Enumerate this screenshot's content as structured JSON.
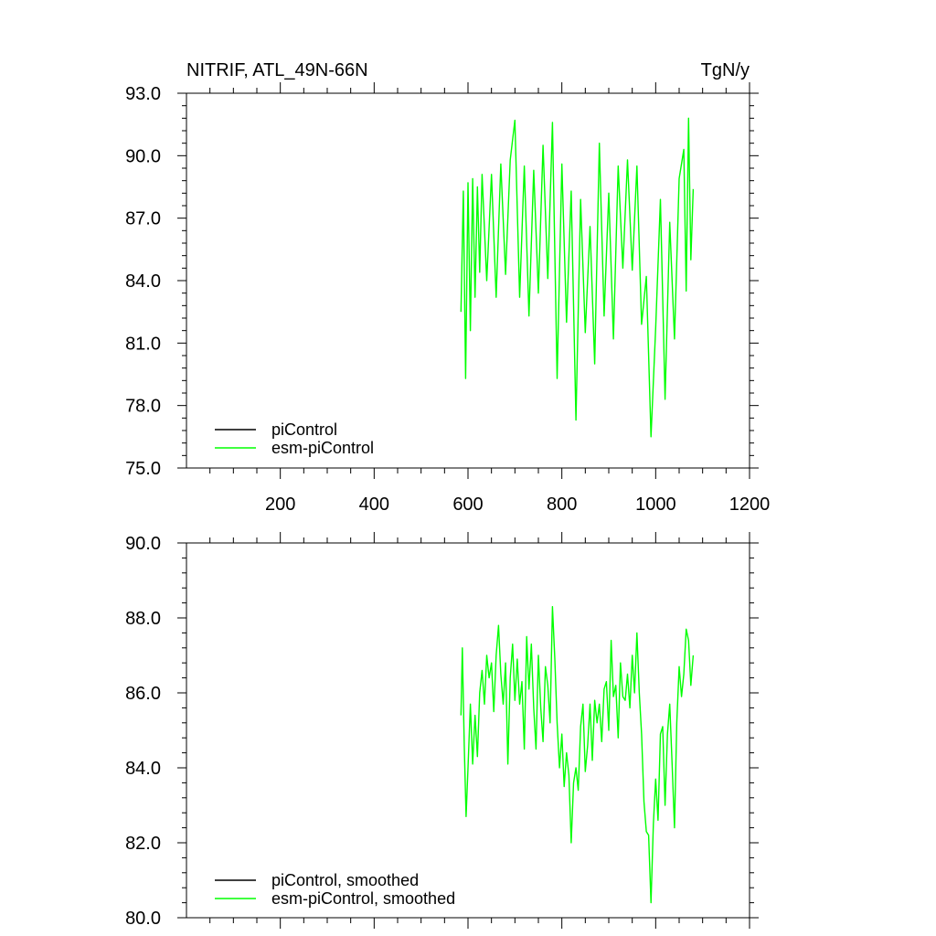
{
  "chart_data": [
    {
      "type": "line",
      "title_left": "NITRIF, ATL_49N-66N",
      "title_right": "TgN/y",
      "xlim": [
        0,
        1200
      ],
      "ylim": [
        75.0,
        93.0
      ],
      "x_ticks": [
        200,
        400,
        600,
        800,
        1000,
        1200
      ],
      "y_ticks": [
        "75.0",
        "78.0",
        "81.0",
        "84.0",
        "87.0",
        "90.0",
        "93.0"
      ],
      "legend": [
        "piControl",
        "esm-piControl"
      ],
      "legend_placement": "bottom-left",
      "series": [
        {
          "name": "piControl",
          "color": "#000000",
          "x": [],
          "y": []
        },
        {
          "name": "esm-piControl",
          "color": "#00ff00",
          "x": [
            585,
            590,
            595,
            600,
            605,
            610,
            615,
            620,
            625,
            630,
            640,
            650,
            660,
            670,
            680,
            690,
            700,
            710,
            720,
            730,
            740,
            750,
            760,
            770,
            780,
            790,
            800,
            810,
            820,
            830,
            840,
            850,
            860,
            870,
            880,
            890,
            900,
            910,
            920,
            930,
            940,
            950,
            960,
            970,
            980,
            990,
            1000,
            1010,
            1020,
            1030,
            1040,
            1050,
            1060,
            1065,
            1070,
            1075,
            1080
          ],
          "y": [
            82.5,
            88.3,
            79.3,
            88.7,
            81.6,
            88.9,
            83.2,
            88.5,
            84.4,
            89.1,
            84.0,
            89.1,
            83.2,
            89.6,
            84.3,
            89.8,
            91.7,
            83.2,
            89.5,
            82.3,
            89.3,
            83.4,
            90.5,
            84.1,
            91.6,
            79.3,
            89.6,
            82.0,
            88.3,
            77.3,
            87.9,
            81.5,
            86.6,
            80.0,
            90.6,
            82.3,
            88.2,
            81.2,
            89.5,
            84.6,
            89.8,
            84.5,
            89.5,
            81.9,
            84.2,
            76.5,
            81.7,
            87.9,
            78.3,
            86.8,
            81.2,
            88.9,
            90.3,
            83.5,
            91.8,
            85.0,
            88.4
          ]
        }
      ]
    },
    {
      "type": "line",
      "xlim": [
        0,
        1200
      ],
      "ylim": [
        80.0,
        90.0
      ],
      "y_ticks": [
        "80.0",
        "82.0",
        "84.0",
        "86.0",
        "88.0",
        "90.0"
      ],
      "legend": [
        "piControl, smoothed",
        "esm-piControl, smoothed"
      ],
      "legend_placement": "bottom-left",
      "series": [
        {
          "name": "piControl, smoothed",
          "color": "#000000",
          "x": [],
          "y": []
        },
        {
          "name": "esm-piControl, smoothed",
          "color": "#00ff00",
          "x": [
            585,
            588,
            592,
            596,
            600,
            605,
            610,
            615,
            620,
            625,
            630,
            635,
            640,
            645,
            650,
            655,
            660,
            665,
            670,
            675,
            680,
            685,
            690,
            695,
            700,
            705,
            710,
            715,
            720,
            725,
            730,
            735,
            740,
            745,
            750,
            755,
            760,
            765,
            770,
            775,
            780,
            785,
            790,
            795,
            800,
            805,
            810,
            815,
            820,
            825,
            830,
            835,
            840,
            845,
            850,
            855,
            860,
            865,
            870,
            875,
            880,
            885,
            890,
            895,
            900,
            905,
            910,
            915,
            920,
            925,
            930,
            935,
            940,
            945,
            950,
            955,
            960,
            965,
            970,
            975,
            980,
            985,
            990,
            995,
            1000,
            1005,
            1010,
            1015,
            1020,
            1025,
            1030,
            1035,
            1040,
            1045,
            1050,
            1055,
            1060,
            1065,
            1070,
            1075,
            1080
          ],
          "y": [
            85.4,
            87.2,
            84.6,
            82.7,
            84.0,
            85.7,
            84.1,
            85.4,
            84.3,
            86.0,
            86.6,
            85.7,
            87.0,
            86.4,
            86.8,
            85.5,
            87.0,
            87.8,
            86.5,
            85.7,
            86.8,
            84.1,
            86.4,
            87.3,
            85.8,
            86.9,
            85.7,
            86.3,
            84.5,
            87.5,
            86.1,
            87.3,
            85.6,
            84.5,
            87.0,
            85.6,
            84.7,
            86.7,
            86.2,
            85.2,
            88.3,
            86.9,
            85.2,
            84.0,
            84.9,
            83.5,
            84.4,
            83.8,
            82.0,
            83.6,
            84.0,
            83.4,
            85.1,
            85.7,
            83.9,
            84.6,
            85.7,
            84.2,
            85.8,
            85.2,
            85.7,
            84.7,
            86.1,
            86.3,
            85.0,
            87.4,
            85.9,
            86.2,
            84.8,
            86.8,
            85.9,
            85.8,
            86.5,
            85.6,
            87.0,
            86.0,
            87.6,
            86.0,
            84.9,
            83.1,
            82.3,
            82.2,
            80.4,
            82.5,
            83.7,
            82.6,
            84.9,
            85.1,
            83.0,
            84.9,
            85.7,
            84.1,
            82.4,
            85.2,
            86.7,
            85.9,
            86.5,
            87.7,
            87.4,
            86.2,
            87.0
          ]
        }
      ]
    }
  ]
}
